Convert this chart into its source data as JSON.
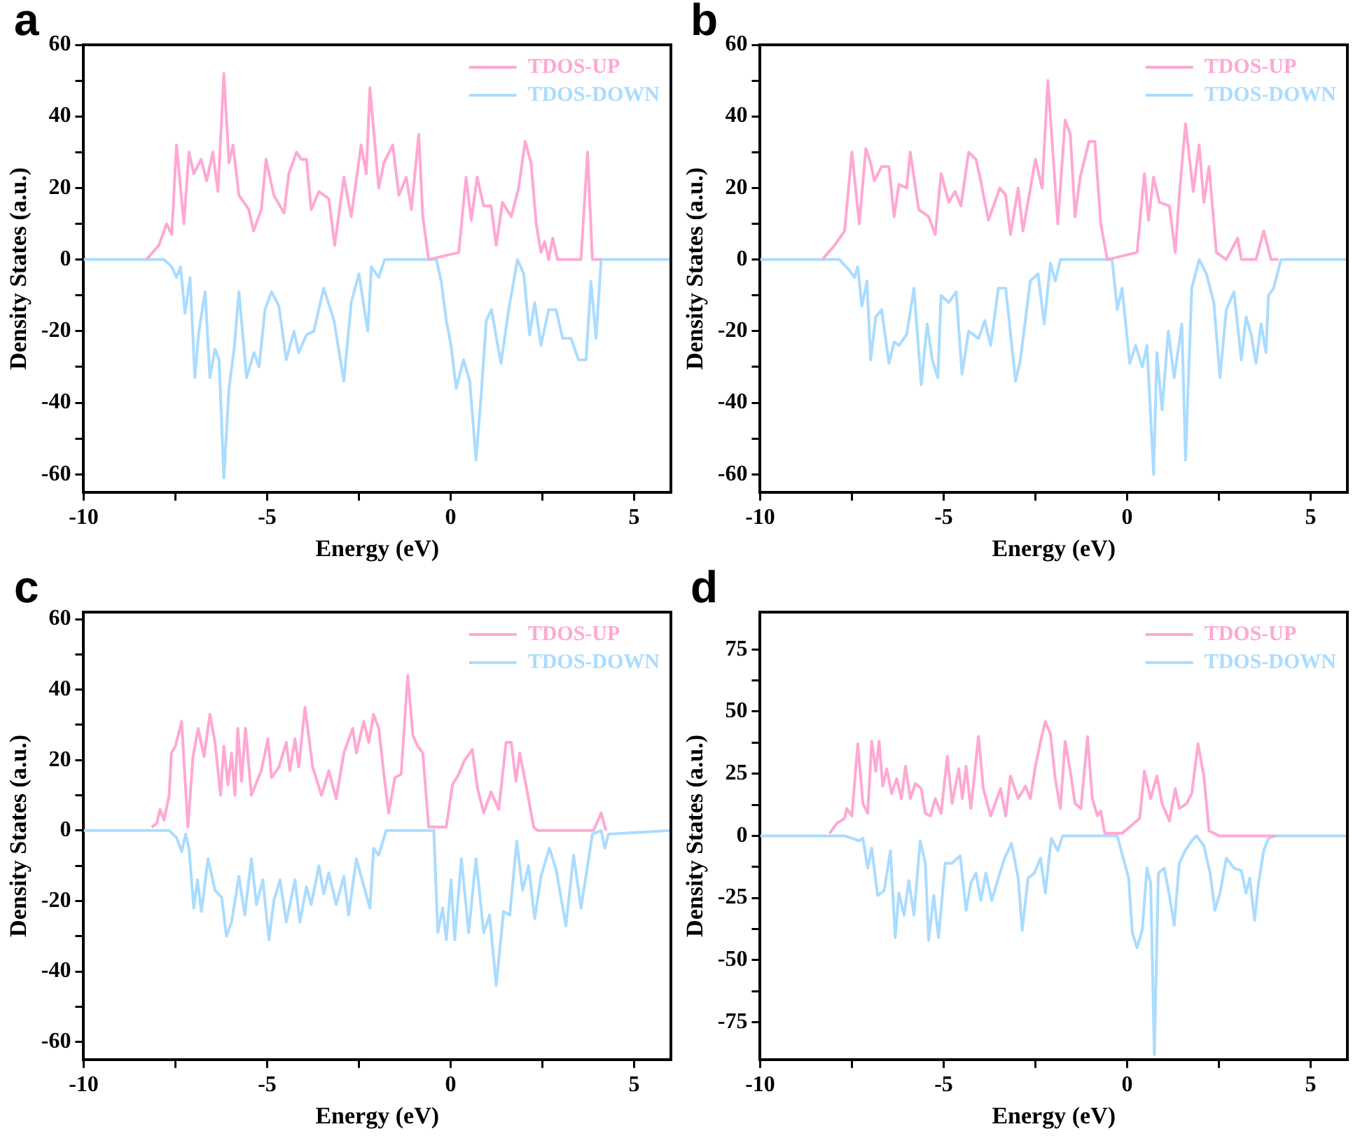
{
  "chart_data": [
    {
      "type": "line",
      "title": "a",
      "xlabel": "Energy (eV)",
      "ylabel": "Density States (a.u.)",
      "legend": "top right",
      "xlim": [
        -10,
        6
      ],
      "xticks": [
        -10,
        {
          "value": -7.5,
          "label": null
        },
        -5,
        {
          "value": -2.5,
          "label": null
        },
        0,
        {
          "value": 2.5,
          "label": null
        },
        5
      ],
      "ylim": [
        -65,
        60
      ],
      "yticks": [
        -60,
        {
          "value": -50,
          "label": null
        },
        -40,
        {
          "value": -30,
          "label": null
        },
        -20,
        {
          "value": -10,
          "label": null
        },
        0,
        {
          "value": 10,
          "label": null
        },
        20,
        {
          "value": 30,
          "label": null
        },
        40,
        {
          "value": 50,
          "label": null
        },
        60
      ],
      "series": [
        {
          "name": "TDOS-UP",
          "color": "#ffa8d4",
          "x": [
            -8.29,
            -7.95,
            -7.74,
            -7.6,
            -7.47,
            -7.27,
            -7.13,
            -7.0,
            -6.8,
            -6.65,
            -6.48,
            -6.34,
            -6.18,
            -6.04,
            -5.93,
            -5.77,
            -5.5,
            -5.37,
            -5.16,
            -5.03,
            -4.82,
            -4.54,
            -4.41,
            -4.2,
            -4.07,
            -3.93,
            -3.8,
            -3.59,
            -3.32,
            -3.16,
            -2.91,
            -2.71,
            -2.44,
            -2.3,
            -2.2,
            -1.96,
            -1.82,
            -1.58,
            -1.41,
            -1.21,
            -1.07,
            -0.87,
            -0.76,
            -0.6,
            0.22,
            0.42,
            0.56,
            0.72,
            0.9,
            1.1,
            1.24,
            1.41,
            1.65,
            1.85,
            2.03,
            2.19,
            2.33,
            2.46,
            2.56,
            2.67,
            2.78,
            2.91,
            3.55,
            3.73,
            3.86,
            4.1
          ],
          "values": [
            0,
            4,
            10,
            7,
            32,
            10,
            30,
            24,
            28,
            22,
            30,
            19,
            52,
            27,
            32,
            18,
            14,
            8,
            14,
            28,
            18,
            13,
            24,
            30,
            28,
            28,
            14,
            19,
            17,
            4,
            23,
            12,
            32,
            24,
            48,
            20,
            27,
            32,
            18,
            23,
            14,
            35,
            12,
            0,
            2,
            23,
            11,
            23,
            15,
            15,
            4,
            16,
            12,
            20,
            33,
            27,
            10,
            2,
            5,
            0,
            6,
            0,
            0,
            30,
            0,
            0
          ]
        },
        {
          "name": "TDOS-DOWN",
          "color": "#aadcff",
          "x": [
            -10,
            -7.81,
            -7.6,
            -7.47,
            -7.36,
            -7.24,
            -7.1,
            -6.97,
            -6.86,
            -6.69,
            -6.56,
            -6.42,
            -6.31,
            -6.18,
            -6.04,
            -5.9,
            -5.77,
            -5.56,
            -5.36,
            -5.22,
            -5.06,
            -4.88,
            -4.68,
            -4.48,
            -4.27,
            -4.14,
            -3.93,
            -3.73,
            -3.46,
            -3.18,
            -2.91,
            -2.71,
            -2.5,
            -2.26,
            -2.16,
            -1.96,
            -1.8,
            -0.39,
            -0.26,
            -0.12,
            0.01,
            0.15,
            0.35,
            0.52,
            0.69,
            0.83,
            0.97,
            1.11,
            1.37,
            1.58,
            1.82,
            1.99,
            2.15,
            2.29,
            2.46,
            2.67,
            2.87,
            3.05,
            3.28,
            3.48,
            3.69,
            3.82,
            3.96,
            4.1,
            6
          ],
          "values": [
            0,
            0,
            -2,
            -5,
            -2,
            -15,
            -5,
            -33,
            -20,
            -9,
            -33,
            -25,
            -28,
            -61,
            -36,
            -25,
            -9,
            -33,
            -26,
            -30,
            -14,
            -9,
            -13,
            -28,
            -20,
            -26,
            -21,
            -20,
            -8,
            -17,
            -34,
            -12,
            -4,
            -20,
            -2,
            -5,
            0,
            0,
            -6,
            -17,
            -24,
            -36,
            -28,
            -34,
            -56,
            -38,
            -17,
            -14,
            -29,
            -14,
            0,
            -4,
            -21,
            -12,
            -24,
            -14,
            -14,
            -22,
            -22,
            -28,
            -28,
            -6,
            -22,
            0,
            0
          ]
        }
      ]
    },
    {
      "type": "line",
      "title": "b",
      "xlabel": "Energy (eV)",
      "ylabel": "Density States (a.u.)",
      "legend": "top right",
      "xlim": [
        -10,
        6
      ],
      "xticks": [
        -10,
        {
          "value": -7.5,
          "label": null
        },
        -5,
        {
          "value": -2.5,
          "label": null
        },
        0,
        {
          "value": 2.5,
          "label": null
        },
        5
      ],
      "ylim": [
        -65,
        60
      ],
      "yticks": [
        -60,
        {
          "value": -50,
          "label": null
        },
        -40,
        {
          "value": -30,
          "label": null
        },
        -20,
        {
          "value": -10,
          "label": null
        },
        0,
        {
          "value": 10,
          "label": null
        },
        20,
        {
          "value": 30,
          "label": null
        },
        40,
        {
          "value": 50,
          "label": null
        },
        60
      ],
      "series": [
        {
          "name": "TDOS-UP",
          "color": "#ffa8d4",
          "x": [
            -8.31,
            -7.97,
            -7.7,
            -7.5,
            -7.3,
            -7.12,
            -6.99,
            -6.89,
            -6.69,
            -6.49,
            -6.35,
            -6.22,
            -6.01,
            -5.91,
            -5.68,
            -5.41,
            -5.23,
            -5.07,
            -4.86,
            -4.69,
            -4.53,
            -4.32,
            -4.12,
            -4.01,
            -3.78,
            -3.47,
            -3.31,
            -3.18,
            -2.97,
            -2.84,
            -2.5,
            -2.32,
            -2.16,
            -1.89,
            -1.69,
            -1.55,
            -1.42,
            -1.28,
            -1.04,
            -0.88,
            -0.72,
            -0.54,
            0.27,
            0.47,
            0.58,
            0.72,
            0.88,
            1.15,
            1.31,
            1.42,
            1.59,
            1.8,
            1.96,
            2.09,
            2.23,
            2.43,
            2.7,
            3.01,
            3.11,
            3.51,
            3.72,
            3.92,
            4.12
          ],
          "values": [
            0,
            4,
            8,
            30,
            10,
            31,
            27,
            22,
            26,
            26,
            12,
            21,
            20,
            30,
            14,
            12,
            7,
            24,
            16,
            19,
            15,
            30,
            28,
            23,
            11,
            20,
            18,
            7,
            20,
            8,
            28,
            20,
            50,
            10,
            39,
            35,
            12,
            23,
            33,
            33,
            10,
            0,
            2,
            24,
            11,
            23,
            16,
            15,
            2,
            18,
            38,
            19,
            32,
            16,
            26,
            2,
            0,
            6,
            0,
            0,
            8,
            0,
            0
          ]
        },
        {
          "name": "TDOS-DOWN",
          "color": "#aadcff",
          "x": [
            -10,
            -7.84,
            -7.57,
            -7.43,
            -7.34,
            -7.23,
            -7.09,
            -6.99,
            -6.85,
            -6.69,
            -6.49,
            -6.35,
            -6.22,
            -6.01,
            -5.81,
            -5.61,
            -5.45,
            -5.31,
            -5.16,
            -5.07,
            -4.86,
            -4.66,
            -4.5,
            -4.32,
            -4.05,
            -3.88,
            -3.72,
            -3.51,
            -3.31,
            -3.04,
            -2.91,
            -2.64,
            -2.43,
            -2.26,
            -2.09,
            -1.96,
            -1.82,
            -0.41,
            -0.27,
            -0.14,
            0.07,
            0.23,
            0.41,
            0.54,
            0.72,
            0.81,
            0.95,
            1.12,
            1.28,
            1.49,
            1.59,
            1.76,
            1.96,
            2.16,
            2.36,
            2.53,
            2.7,
            2.91,
            3.11,
            3.24,
            3.38,
            3.51,
            3.65,
            3.78,
            3.85,
            3.99,
            4.19,
            6
          ],
          "values": [
            0,
            0,
            -3,
            -5,
            -2,
            -13,
            -6,
            -28,
            -16,
            -14,
            -29,
            -23,
            -24,
            -21,
            -8,
            -35,
            -18,
            -28,
            -33,
            -10,
            -12,
            -9,
            -32,
            -20,
            -22,
            -17,
            -24,
            -8,
            -8,
            -34,
            -28,
            -6,
            -4,
            -18,
            -1,
            -6,
            0,
            0,
            -14,
            -8,
            -29,
            -24,
            -30,
            -24,
            -60,
            -26,
            -42,
            -20,
            -33,
            -18,
            -56,
            -8,
            0,
            -4,
            -12,
            -33,
            -14,
            -9,
            -28,
            -16,
            -21,
            -29,
            -18,
            -26,
            -10,
            -8,
            0,
            0
          ]
        }
      ]
    },
    {
      "type": "line",
      "title": "c",
      "xlabel": "Energy (eV)",
      "ylabel": "Density States (a.u.)",
      "legend": "top right",
      "xlim": [
        -10,
        6
      ],
      "xticks": [
        -10,
        {
          "value": -7.5,
          "label": null
        },
        -5,
        {
          "value": -2.5,
          "label": null
        },
        0,
        {
          "value": 2.5,
          "label": null
        },
        5
      ],
      "ylim": [
        -65,
        62
      ],
      "yticks": [
        -60,
        {
          "value": -50,
          "label": null
        },
        -40,
        {
          "value": -30,
          "label": null
        },
        -20,
        {
          "value": -10,
          "label": null
        },
        0,
        {
          "value": 10,
          "label": null
        },
        20,
        {
          "value": 30,
          "label": null
        },
        40,
        {
          "value": 50,
          "label": null
        },
        60
      ],
      "series": [
        {
          "name": "TDOS-UP",
          "color": "#ffa8d4",
          "x": [
            -8.15,
            -8.01,
            -7.92,
            -7.81,
            -7.67,
            -7.61,
            -7.5,
            -7.33,
            -7.16,
            -7.02,
            -6.88,
            -6.72,
            -6.56,
            -6.42,
            -6.27,
            -6.18,
            -6.07,
            -5.97,
            -5.88,
            -5.8,
            -5.7,
            -5.59,
            -5.43,
            -5.16,
            -4.98,
            -4.88,
            -4.68,
            -4.48,
            -4.38,
            -4.24,
            -4.14,
            -3.97,
            -3.76,
            -3.52,
            -3.32,
            -3.12,
            -2.91,
            -2.67,
            -2.57,
            -2.37,
            -2.23,
            -2.1,
            -1.96,
            -1.82,
            -1.69,
            -1.52,
            -1.35,
            -1.17,
            -1.03,
            -0.9,
            -0.76,
            -0.6,
            -0.12,
            0.05,
            0.22,
            0.38,
            0.59,
            0.73,
            0.9,
            1.1,
            1.31,
            1.51,
            1.65,
            1.78,
            1.88,
            2.05,
            2.26,
            2.37,
            3.89,
            4.1,
            4.23
          ],
          "values": [
            1,
            2,
            6,
            3,
            10,
            22,
            24,
            31,
            1,
            21,
            29,
            21,
            33,
            25,
            10,
            24,
            13,
            22,
            10,
            29,
            14,
            29,
            10,
            17,
            26,
            15,
            18,
            25,
            17,
            26,
            18,
            35,
            18,
            10,
            17,
            9,
            22,
            29,
            22,
            31,
            25,
            33,
            29,
            16,
            5,
            15,
            16,
            44,
            27,
            24,
            22,
            1,
            1,
            13,
            16,
            20,
            23,
            12,
            5,
            11,
            6,
            25,
            25,
            14,
            22,
            13,
            1,
            0,
            0,
            5,
            0
          ]
        },
        {
          "name": "TDOS-DOWN",
          "color": "#aadcff",
          "x": [
            -10,
            -7.67,
            -7.47,
            -7.33,
            -7.22,
            -7.13,
            -7.0,
            -6.9,
            -6.79,
            -6.61,
            -6.42,
            -6.24,
            -6.11,
            -5.97,
            -5.77,
            -5.61,
            -5.43,
            -5.29,
            -5.12,
            -4.95,
            -4.82,
            -4.65,
            -4.48,
            -4.24,
            -4.11,
            -3.93,
            -3.8,
            -3.59,
            -3.46,
            -3.32,
            -3.12,
            -2.91,
            -2.78,
            -2.57,
            -2.44,
            -2.2,
            -2.1,
            -1.96,
            -1.76,
            -0.46,
            -0.35,
            -0.22,
            -0.12,
            0.01,
            0.11,
            0.29,
            0.49,
            0.69,
            0.9,
            1.06,
            1.24,
            1.44,
            1.61,
            1.8,
            1.96,
            2.12,
            2.29,
            2.46,
            2.69,
            2.87,
            3.14,
            3.35,
            3.55,
            3.73,
            3.86,
            4.1,
            4.2,
            4.3,
            6
          ],
          "values": [
            0,
            0,
            -2,
            -6,
            -1,
            -5,
            -22,
            -14,
            -23,
            -8,
            -17,
            -19,
            -30,
            -26,
            -13,
            -24,
            -8,
            -21,
            -14,
            -31,
            -20,
            -14,
            -26,
            -14,
            -26,
            -16,
            -21,
            -10,
            -18,
            -12,
            -21,
            -13,
            -24,
            -8,
            -13,
            -22,
            -5,
            -7,
            0,
            0,
            -29,
            -22,
            -31,
            -14,
            -31,
            -8,
            -29,
            -8,
            -29,
            -24,
            -44,
            -23,
            -24,
            -3,
            -17,
            -10,
            -25,
            -13,
            -5,
            -11,
            -27,
            -7,
            -22,
            -10,
            -1,
            0,
            -5,
            -1,
            0
          ]
        }
      ]
    },
    {
      "type": "line",
      "title": "d",
      "xlabel": "Energy (eV)",
      "ylabel": "Density States (a.u.)",
      "legend": "top right",
      "xlim": [
        -10,
        6
      ],
      "xticks": [
        -10,
        {
          "value": -7.5,
          "label": null
        },
        -5,
        {
          "value": -2.5,
          "label": null
        },
        0,
        {
          "value": 2.5,
          "label": null
        },
        5
      ],
      "ylim": [
        -90,
        90
      ],
      "yticks": [
        -75,
        {
          "value": -62.5,
          "label": null
        },
        -50,
        {
          "value": -37.5,
          "label": null
        },
        -25,
        {
          "value": -12.5,
          "label": null
        },
        0,
        {
          "value": 12.5,
          "label": null
        },
        25,
        {
          "value": 37.5,
          "label": null
        },
        50,
        {
          "value": 62.5,
          "label": null
        },
        75
      ],
      "series": [
        {
          "name": "TDOS-UP",
          "color": "#ffa8d4",
          "x": [
            -8.11,
            -7.91,
            -7.7,
            -7.64,
            -7.5,
            -7.34,
            -7.2,
            -7.07,
            -6.96,
            -6.85,
            -6.76,
            -6.66,
            -6.55,
            -6.42,
            -6.28,
            -6.15,
            -6.04,
            -5.91,
            -5.77,
            -5.61,
            -5.5,
            -5.36,
            -5.23,
            -5.07,
            -4.9,
            -4.77,
            -4.59,
            -4.49,
            -4.39,
            -4.26,
            -4.05,
            -3.92,
            -3.72,
            -3.45,
            -3.31,
            -3.18,
            -2.97,
            -2.77,
            -2.64,
            -2.5,
            -2.36,
            -2.23,
            -2.09,
            -1.96,
            -1.82,
            -1.69,
            -1.55,
            -1.42,
            -1.26,
            -1.08,
            -0.95,
            -0.81,
            -0.72,
            -0.61,
            -0.14,
            0.34,
            0.47,
            0.64,
            0.81,
            0.95,
            1.15,
            1.31,
            1.42,
            1.62,
            1.76,
            1.93,
            2.09,
            2.23,
            2.5,
            4.05
          ],
          "values": [
            1,
            5,
            7,
            11,
            8,
            37,
            13,
            9,
            38,
            26,
            38,
            20,
            27,
            17,
            23,
            15,
            28,
            15,
            21,
            19,
            9,
            8,
            15,
            9,
            32,
            13,
            27,
            15,
            28,
            11,
            40,
            19,
            8,
            19,
            8,
            24,
            15,
            20,
            15,
            28,
            38,
            46,
            41,
            23,
            11,
            38,
            26,
            13,
            11,
            40,
            15,
            8,
            10,
            1,
            1,
            7,
            26,
            15,
            24,
            13,
            6,
            19,
            11,
            13,
            17,
            37,
            24,
            2,
            0,
            0
          ]
        },
        {
          "name": "TDOS-DOWN",
          "color": "#aadcff",
          "x": [
            -10,
            -7.7,
            -7.5,
            -7.3,
            -7.2,
            -7.07,
            -6.96,
            -6.8,
            -6.62,
            -6.45,
            -6.32,
            -6.22,
            -6.08,
            -5.95,
            -5.81,
            -5.64,
            -5.5,
            -5.41,
            -5.27,
            -5.14,
            -4.96,
            -4.77,
            -4.55,
            -4.39,
            -4.26,
            -4.12,
            -3.99,
            -3.85,
            -3.69,
            -3.51,
            -3.34,
            -3.15,
            -2.97,
            -2.86,
            -2.7,
            -2.53,
            -2.36,
            -2.23,
            -2.07,
            -1.89,
            -1.76,
            -0.27,
            -0.07,
            0.04,
            0.14,
            0.27,
            0.41,
            0.54,
            0.64,
            0.74,
            0.85,
            1.01,
            1.15,
            1.28,
            1.42,
            1.58,
            1.76,
            1.89,
            2.09,
            2.26,
            2.39,
            2.53,
            2.7,
            2.91,
            3.11,
            3.24,
            3.34,
            3.47,
            3.58,
            3.72,
            3.85,
            4.05,
            6
          ],
          "values": [
            0,
            0,
            -1,
            -2,
            -1,
            -13,
            -5,
            -24,
            -22,
            -6,
            -41,
            -23,
            -32,
            -18,
            -32,
            -2,
            -11,
            -42,
            -24,
            -41,
            -11,
            -11,
            -8,
            -30,
            -19,
            -15,
            -26,
            -15,
            -26,
            -17,
            -9,
            -3,
            -17,
            -38,
            -17,
            -15,
            -9,
            -23,
            -1,
            -6,
            0,
            0,
            -11,
            -17,
            -39,
            -45,
            -38,
            -13,
            -19,
            -88,
            -15,
            -13,
            -24,
            -36,
            -11,
            -6,
            -2,
            0,
            -4,
            -15,
            -30,
            -23,
            -9,
            -13,
            -14,
            -23,
            -17,
            -34,
            -19,
            -6,
            -1,
            0,
            0
          ]
        }
      ]
    }
  ]
}
